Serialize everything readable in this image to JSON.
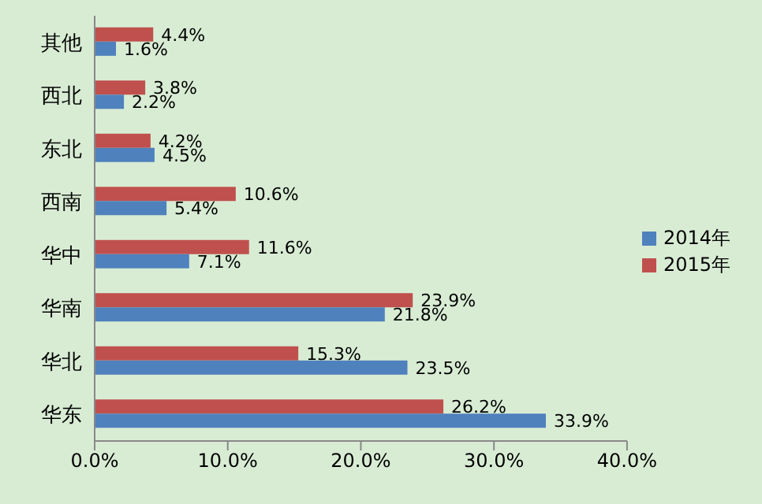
{
  "chart_data": {
    "type": "bar",
    "orientation": "horizontal",
    "categories": [
      "其他",
      "西北",
      "东北",
      "西南",
      "华中",
      "华南",
      "华北",
      "华东"
    ],
    "series": [
      {
        "name": "2015年",
        "color": "#c0504d",
        "values": [
          4.4,
          3.8,
          4.2,
          10.6,
          11.6,
          23.9,
          15.3,
          26.2
        ],
        "value_labels": [
          "4.4%",
          "3.8%",
          "4.2%",
          "10.6%",
          "11.6%",
          "23.9%",
          "15.3%",
          "26.2%"
        ]
      },
      {
        "name": "2014年",
        "color": "#4f81bd",
        "values": [
          1.6,
          2.2,
          4.5,
          5.4,
          7.1,
          21.8,
          23.5,
          33.9
        ],
        "value_labels": [
          "1.6%",
          "2.2%",
          "4.5%",
          "5.4%",
          "7.1%",
          "21.8%",
          "23.5%",
          "33.9%"
        ]
      }
    ],
    "xlim": [
      0,
      40
    ],
    "xticks": [
      {
        "value": 0,
        "label": "0.0%"
      },
      {
        "value": 10,
        "label": "10.0%"
      },
      {
        "value": 20,
        "label": "20.0%"
      },
      {
        "value": 30,
        "label": "30.0%"
      },
      {
        "value": 40,
        "label": "40.0%"
      }
    ],
    "legend": "right",
    "grid": false
  }
}
